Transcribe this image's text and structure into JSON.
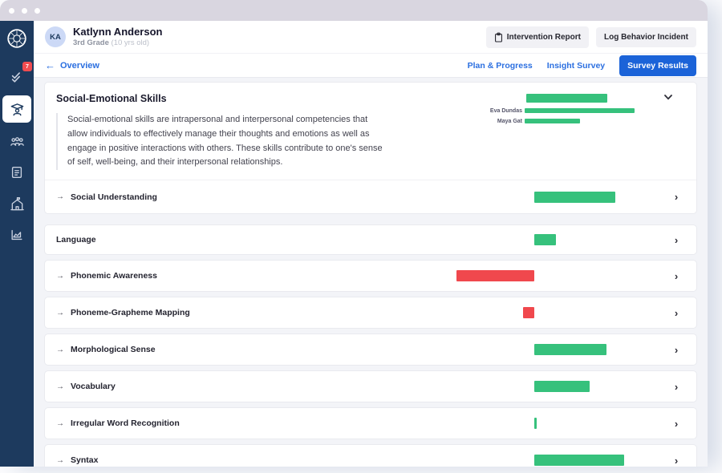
{
  "window": {
    "dots": 3
  },
  "sidebar": {
    "items": [
      {
        "name": "logo"
      },
      {
        "name": "tasks",
        "badge": "7"
      },
      {
        "name": "students",
        "active": true
      },
      {
        "name": "groups"
      },
      {
        "name": "library"
      },
      {
        "name": "school"
      },
      {
        "name": "reports"
      }
    ]
  },
  "header": {
    "avatar_initials": "KA",
    "student_name": "Katlynn Anderson",
    "grade": "3rd Grade",
    "age": "(10 yrs old)",
    "buttons": [
      {
        "label": "Intervention Report",
        "icon": "clipboard-icon"
      },
      {
        "label": "Log Behavior Incident"
      }
    ]
  },
  "nav": {
    "back_label": "Overview",
    "back_arrow": "←",
    "tabs": [
      {
        "label": "Plan & Progress",
        "active": false
      },
      {
        "label": "Insight Survey",
        "active": false
      },
      {
        "label": "Survey Results",
        "active": true
      }
    ]
  },
  "colors": {
    "positive": "#36c17c",
    "negative": "#f0484d",
    "sidebar": "#1d3a5e",
    "primary_blue": "#1b63d8",
    "link_blue": "#2b6fe0",
    "badge_red": "#f04c50"
  },
  "content": {
    "sections": [
      {
        "title": "Social-Emotional Skills",
        "expanded": true,
        "value": 74,
        "description": "Social-emotional skills are intrapersonal and interpersonal competencies that allow individuals to effectively manage their thoughts and emotions as well as engage in positive interactions with others. These skills contribute to one's sense of self, well-being, and their interpersonal relationships.",
        "raters": [
          {
            "name": "Eva Dundas",
            "value": 100
          },
          {
            "name": "Maya Gat",
            "value": 50
          }
        ],
        "subskills": [
          {
            "label": "Social Understanding",
            "value": 74
          }
        ]
      },
      {
        "title": "Language",
        "expanded": false,
        "value": 20,
        "subskills": [
          {
            "label": "Phonemic Awareness",
            "value": -71
          },
          {
            "label": "Phoneme-Grapheme Mapping",
            "value": -10
          },
          {
            "label": "Morphological Sense",
            "value": 66
          },
          {
            "label": "Vocabulary",
            "value": 50
          },
          {
            "label": "Irregular Word Recognition",
            "value": 2
          },
          {
            "label": "Syntax",
            "value": 82
          }
        ]
      }
    ]
  },
  "chart_data": {
    "type": "bar",
    "orientation": "diverging-horizontal",
    "baseline": 0,
    "range": [
      -100,
      100
    ],
    "axis_labels": "none (unlabeled strength/need bars from center baseline)",
    "positive_color": "#36c17c",
    "negative_color": "#f0484d",
    "groups": [
      {
        "label": "Social-Emotional Skills",
        "value": 74,
        "raters": [
          {
            "name": "Eva Dundas",
            "value": 100
          },
          {
            "name": "Maya Gat",
            "value": 50
          }
        ],
        "subskills": [
          {
            "label": "Social Understanding",
            "value": 74
          }
        ]
      },
      {
        "label": "Language",
        "value": 20,
        "subskills": [
          {
            "label": "Phonemic Awareness",
            "value": -71
          },
          {
            "label": "Phoneme-Grapheme Mapping",
            "value": -10
          },
          {
            "label": "Morphological Sense",
            "value": 66
          },
          {
            "label": "Vocabulary",
            "value": 50
          },
          {
            "label": "Irregular Word Recognition",
            "value": 2
          },
          {
            "label": "Syntax",
            "value": 82
          }
        ]
      }
    ]
  }
}
